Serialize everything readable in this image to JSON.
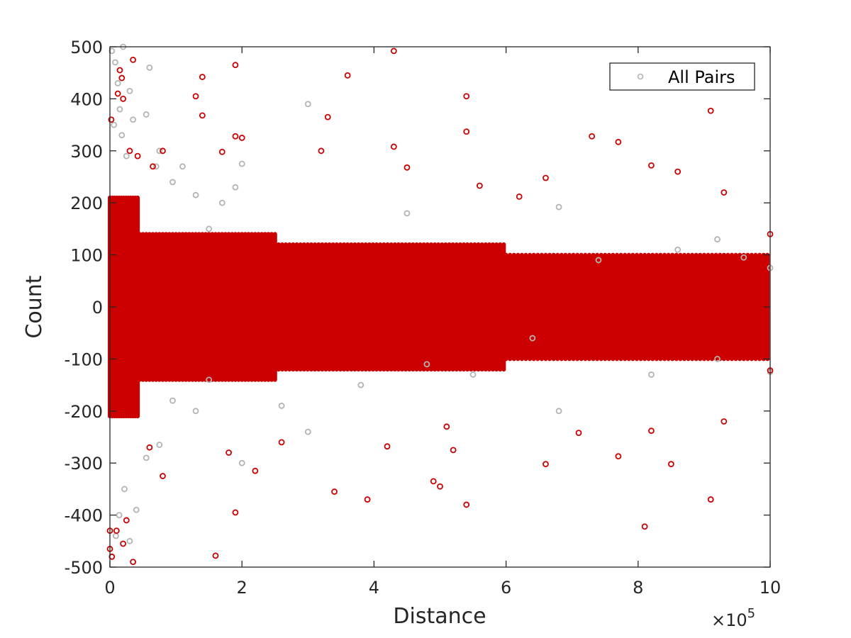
{
  "chart_data": {
    "type": "scatter",
    "title": "",
    "xlabel": "Distance",
    "ylabel": "Count",
    "x_exponent_label": "×10",
    "x_exponent_power": "5",
    "x_scale_factor": 100000,
    "xlim": [
      0,
      1000000
    ],
    "ylim": [
      -500,
      500
    ],
    "x_ticks": [
      0,
      200000,
      400000,
      600000,
      800000,
      1000000
    ],
    "x_tick_labels": [
      "0",
      "2",
      "4",
      "6",
      "8",
      "10"
    ],
    "y_ticks": [
      -500,
      -400,
      -300,
      -200,
      -100,
      0,
      100,
      200,
      300,
      400,
      500
    ],
    "y_tick_labels": [
      "-500",
      "-400",
      "-300",
      "-200",
      "-100",
      "0",
      "100",
      "200",
      "300",
      "400",
      "500"
    ],
    "grid": false,
    "legend": {
      "position": "top-right",
      "entries": [
        "All Pairs"
      ]
    },
    "series": [
      {
        "name": "All Pairs",
        "color": "#b3b3b3",
        "marker": "circle",
        "points": [
          [
            3000,
            492
          ],
          [
            8000,
            470
          ],
          [
            12000,
            430
          ],
          [
            15000,
            380
          ],
          [
            18000,
            330
          ],
          [
            25000,
            290
          ],
          [
            30000,
            415
          ],
          [
            35000,
            360
          ],
          [
            20000,
            500
          ],
          [
            6000,
            350
          ],
          [
            60000,
            460
          ],
          [
            55000,
            370
          ],
          [
            75000,
            300
          ],
          [
            70000,
            270
          ],
          [
            95000,
            240
          ],
          [
            110000,
            270
          ],
          [
            130000,
            215
          ],
          [
            150000,
            150
          ],
          [
            170000,
            200
          ],
          [
            200000,
            275
          ],
          [
            190000,
            230
          ],
          [
            300000,
            390
          ],
          [
            450000,
            180
          ],
          [
            680000,
            192
          ],
          [
            920000,
            130
          ],
          [
            960000,
            95
          ],
          [
            1000000,
            75
          ],
          [
            860000,
            110
          ],
          [
            740000,
            90
          ],
          [
            3000,
            -480
          ],
          [
            9000,
            -440
          ],
          [
            14000,
            -400
          ],
          [
            22000,
            -350
          ],
          [
            30000,
            -450
          ],
          [
            40000,
            -390
          ],
          [
            55000,
            -290
          ],
          [
            75000,
            -265
          ],
          [
            95000,
            -180
          ],
          [
            130000,
            -200
          ],
          [
            150000,
            -140
          ],
          [
            200000,
            -300
          ],
          [
            300000,
            -240
          ],
          [
            380000,
            -150
          ],
          [
            550000,
            -130
          ],
          [
            680000,
            -200
          ],
          [
            820000,
            -130
          ],
          [
            920000,
            -100
          ],
          [
            1000000,
            -125
          ],
          [
            480000,
            -110
          ],
          [
            260000,
            -190
          ],
          [
            640000,
            -60
          ]
        ]
      },
      {
        "name": "",
        "color": "#cc0000",
        "marker": "circle",
        "points": [
          [
            15000,
            455
          ],
          [
            18000,
            440
          ],
          [
            35000,
            475
          ],
          [
            12000,
            410
          ],
          [
            20000,
            400
          ],
          [
            2000,
            360
          ],
          [
            30000,
            300
          ],
          [
            42000,
            290
          ],
          [
            65000,
            270
          ],
          [
            80000,
            300
          ],
          [
            130000,
            405
          ],
          [
            140000,
            442
          ],
          [
            140000,
            368
          ],
          [
            190000,
            465
          ],
          [
            190000,
            328
          ],
          [
            200000,
            325
          ],
          [
            170000,
            298
          ],
          [
            330000,
            365
          ],
          [
            320000,
            300
          ],
          [
            360000,
            445
          ],
          [
            430000,
            492
          ],
          [
            430000,
            308
          ],
          [
            450000,
            268
          ],
          [
            540000,
            405
          ],
          [
            540000,
            337
          ],
          [
            560000,
            233
          ],
          [
            620000,
            212
          ],
          [
            660000,
            248
          ],
          [
            730000,
            328
          ],
          [
            770000,
            317
          ],
          [
            820000,
            272
          ],
          [
            860000,
            260
          ],
          [
            910000,
            377
          ],
          [
            930000,
            220
          ],
          [
            1000000,
            140
          ],
          [
            0,
            -465
          ],
          [
            3000,
            -480
          ],
          [
            20000,
            -455
          ],
          [
            35000,
            -490
          ],
          [
            10000,
            -430
          ],
          [
            25000,
            -410
          ],
          [
            0,
            -430
          ],
          [
            80000,
            -325
          ],
          [
            60000,
            -270
          ],
          [
            160000,
            -478
          ],
          [
            190000,
            -395
          ],
          [
            180000,
            -280
          ],
          [
            220000,
            -315
          ],
          [
            260000,
            -260
          ],
          [
            340000,
            -355
          ],
          [
            390000,
            -370
          ],
          [
            420000,
            -268
          ],
          [
            490000,
            -335
          ],
          [
            500000,
            -345
          ],
          [
            510000,
            -230
          ],
          [
            540000,
            -380
          ],
          [
            520000,
            -275
          ],
          [
            660000,
            -302
          ],
          [
            710000,
            -242
          ],
          [
            770000,
            -287
          ],
          [
            810000,
            -422
          ],
          [
            820000,
            -238
          ],
          [
            850000,
            -302
          ],
          [
            910000,
            -370
          ],
          [
            930000,
            -220
          ],
          [
            1000000,
            -122
          ]
        ]
      }
    ],
    "bands": [
      {
        "series": 0,
        "x_start": 0,
        "x_end": 45000,
        "y_min": -90,
        "y_max": 90,
        "step": 3500
      },
      {
        "series": 0,
        "x_start": 45000,
        "x_end": 100000,
        "y_min": -55,
        "y_max": 55,
        "step": 4000
      },
      {
        "series": 0,
        "x_start": 100000,
        "x_end": 250000,
        "y_min": -25,
        "y_max": 25,
        "step": 5000
      },
      {
        "series": 0,
        "x_start": 840000,
        "x_end": 895000,
        "y_min": -20,
        "y_max": 20,
        "step": 4000
      },
      {
        "series": 1,
        "x_start": 0,
        "x_end": 45000,
        "y_min": -210,
        "y_max": 210,
        "step": 3500
      },
      {
        "series": 1,
        "x_start": 45000,
        "x_end": 250000,
        "y_min": -140,
        "y_max": 140,
        "step": 5000
      },
      {
        "series": 1,
        "x_start": 250000,
        "x_end": 600000,
        "y_min": -120,
        "y_max": 120,
        "step": 5500
      },
      {
        "series": 1,
        "x_start": 600000,
        "x_end": 1000000,
        "y_min": -100,
        "y_max": 100,
        "step": 6000
      }
    ]
  }
}
